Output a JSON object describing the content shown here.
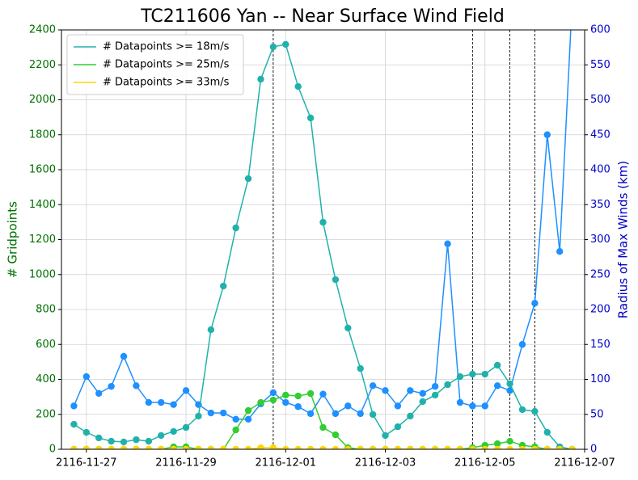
{
  "chart_data": {
    "type": "line",
    "title": "TC211606 Yan -- Near Surface Wind Field",
    "ylabel": "# Gridpoints",
    "y2label": "Radius of Max Winds (km)",
    "x": [
      "2116-11-26T18:00",
      "2116-11-27T00:00",
      "2116-11-27T06:00",
      "2116-11-27T12:00",
      "2116-11-27T18:00",
      "2116-11-28T00:00",
      "2116-11-28T06:00",
      "2116-11-28T12:00",
      "2116-11-28T18:00",
      "2116-11-29T00:00",
      "2116-11-29T06:00",
      "2116-11-29T12:00",
      "2116-11-29T18:00",
      "2116-11-30T00:00",
      "2116-11-30T06:00",
      "2116-11-30T12:00",
      "2116-11-30T18:00",
      "2116-12-01T00:00",
      "2116-12-01T06:00",
      "2116-12-01T12:00",
      "2116-12-01T18:00",
      "2116-12-02T00:00",
      "2116-12-02T06:00",
      "2116-12-02T12:00",
      "2116-12-02T18:00",
      "2116-12-03T00:00",
      "2116-12-03T06:00",
      "2116-12-03T12:00",
      "2116-12-03T18:00",
      "2116-12-04T00:00",
      "2116-12-04T06:00",
      "2116-12-04T12:00",
      "2116-12-04T18:00",
      "2116-12-05T00:00",
      "2116-12-05T06:00",
      "2116-12-05T12:00",
      "2116-12-05T18:00",
      "2116-12-06T00:00",
      "2116-12-06T06:00",
      "2116-12-06T12:00",
      "2116-12-06T18:00"
    ],
    "series": [
      {
        "name": "# Datapoints >= 18m/s",
        "color": "#20b2aa",
        "values": [
          143,
          97,
          65,
          46,
          42,
          55,
          46,
          79,
          102,
          125,
          190,
          684,
          934,
          1267,
          1549,
          2118,
          2303,
          2317,
          2076,
          1896,
          1299,
          971,
          694,
          462,
          199,
          79,
          129,
          190,
          273,
          310,
          370,
          416,
          430,
          430,
          481,
          375,
          227,
          217,
          97,
          14,
          0
        ]
      },
      {
        "name": "# Datapoints >= 25m/s",
        "color": "#32cd32",
        "values": [
          0,
          0,
          0,
          0,
          0,
          0,
          0,
          0,
          14,
          14,
          0,
          0,
          0,
          111,
          222,
          268,
          282,
          310,
          305,
          319,
          125,
          83,
          9,
          0,
          0,
          0,
          0,
          0,
          0,
          0,
          0,
          0,
          9,
          23,
          32,
          46,
          23,
          14,
          0,
          0,
          0
        ]
      },
      {
        "name": "# Datapoints >= 33m/s",
        "color": "#ffd700",
        "values": [
          0,
          0,
          0,
          0,
          0,
          0,
          0,
          0,
          0,
          0,
          0,
          0,
          0,
          0,
          0,
          9,
          9,
          0,
          0,
          0,
          0,
          0,
          0,
          0,
          0,
          0,
          0,
          0,
          0,
          0,
          0,
          0,
          0,
          0,
          0,
          0,
          0,
          0,
          0,
          0,
          0
        ]
      },
      {
        "color": "#1e90ff",
        "axis": "y2",
        "values": [
          62,
          104,
          80,
          90,
          133,
          91,
          67,
          67,
          64,
          84,
          64,
          52,
          52,
          43,
          43,
          65,
          81,
          67,
          61,
          51,
          79,
          51,
          62,
          51,
          91,
          84,
          62,
          84,
          80,
          90,
          294,
          67,
          62,
          62,
          91,
          84,
          150,
          209,
          450,
          283,
          640
        ]
      }
    ],
    "vlines": [
      "2116-11-30T18:00",
      "2116-12-04T18:00",
      "2116-12-05T12:00",
      "2116-12-06T00:00"
    ],
    "xlim": [
      "2116-11-26T12:00",
      "2116-12-07T00:00"
    ],
    "xticks": [
      "2116-11-27",
      "2116-11-29",
      "2116-12-01",
      "2116-12-03",
      "2116-12-05",
      "2116-12-07"
    ],
    "ylim": [
      0,
      2400
    ],
    "yticks": [
      0,
      200,
      400,
      600,
      800,
      1000,
      1200,
      1400,
      1600,
      1800,
      2000,
      2200,
      2400
    ],
    "y2lim": [
      0,
      600
    ],
    "y2ticks": [
      0,
      50,
      100,
      150,
      200,
      250,
      300,
      350,
      400,
      450,
      500,
      550,
      600
    ],
    "grid": true,
    "legend": "upper left",
    "ylabel_color": "#007000",
    "y2label_color": "#0000c8"
  }
}
